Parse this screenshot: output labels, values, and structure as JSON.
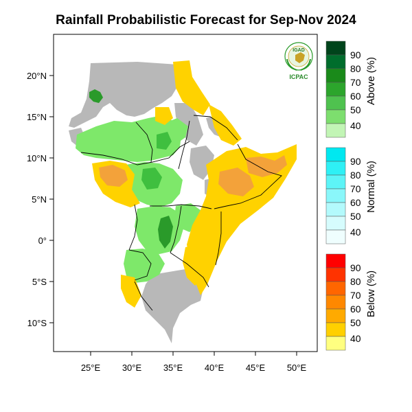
{
  "title": "Rainfall Probabilistic Forecast for Sep-Nov 2024",
  "logo": {
    "top_text": "IGAD",
    "bottom_text": "ICPAC"
  },
  "axes": {
    "lat_ticks": [
      "20°N",
      "15°N",
      "10°N",
      "5°N",
      "0°",
      "5°S",
      "10°S"
    ],
    "lon_ticks": [
      "25°E",
      "30°E",
      "35°E",
      "40°E",
      "45°E",
      "50°E"
    ]
  },
  "legend": {
    "above": {
      "title": "Above (%)",
      "labels": [
        "90",
        "80",
        "70",
        "60",
        "50",
        "40"
      ],
      "colors": [
        "#00441b",
        "#006d2c",
        "#1a8a1a",
        "#2ca52c",
        "#4fc24f",
        "#7dde6e",
        "#c2f5b5"
      ]
    },
    "normal": {
      "title": "Normal (%)",
      "labels": [
        "90",
        "80",
        "70",
        "60",
        "50",
        "40"
      ],
      "colors": [
        "#00e8f0",
        "#2ef0f5",
        "#5df4f7",
        "#8af7fa",
        "#b3fafc",
        "#d6fcfd",
        "#effefe"
      ]
    },
    "below": {
      "title": "Below (%)",
      "labels": [
        "90",
        "80",
        "70",
        "60",
        "50",
        "40"
      ],
      "colors": [
        "#ff0000",
        "#ff3300",
        "#ff6600",
        "#ff8800",
        "#ffaa00",
        "#ffd000",
        "#ffff80"
      ]
    }
  },
  "map_colors": {
    "no_data": "#b8b8b8",
    "above_light": "#7ee86a",
    "above_mid": "#3fbf3f",
    "above_dark": "#2a9a2a",
    "below_light": "#ffd200",
    "below_mid": "#f3a23a",
    "frame": "#000000"
  }
}
